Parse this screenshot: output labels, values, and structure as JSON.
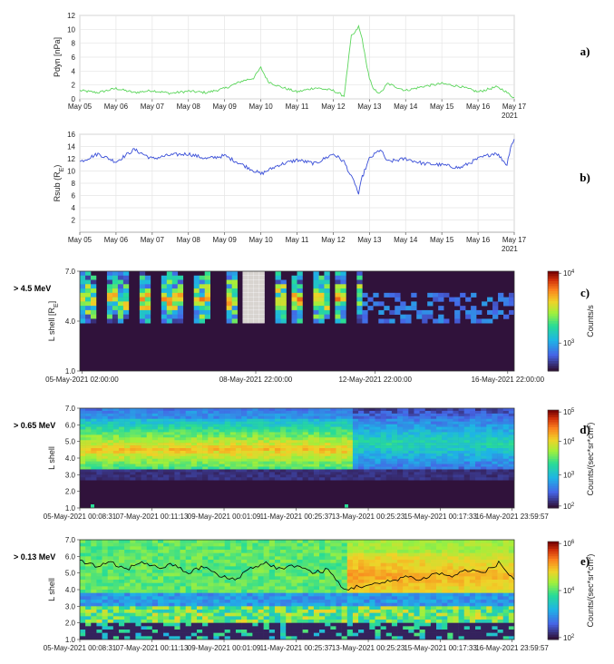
{
  "chart_data": [
    {
      "panel": "a)",
      "type": "line",
      "ylabel": "Pdyn [nPa]",
      "ylim": [
        0,
        12
      ],
      "yticks": [
        "0",
        "2",
        "4",
        "6",
        "8",
        "10",
        "12"
      ],
      "xticks": [
        "May 05",
        "May 06",
        "May 07",
        "May 08",
        "May 09",
        "May 10",
        "May 11",
        "May 12",
        "May 13",
        "May 14",
        "May 15",
        "May 16",
        "May 17"
      ],
      "year_label": "2021",
      "line_color": "#5cd65c",
      "x": [
        0,
        0.5,
        1,
        1.5,
        2,
        2.5,
        3,
        3.5,
        4,
        4.5,
        4.8,
        5,
        5.2,
        5.5,
        6,
        6.5,
        7,
        7.3,
        7.5,
        7.6,
        7.7,
        7.8,
        7.9,
        8,
        8.1,
        8.3,
        8.5,
        9,
        9.5,
        10,
        10.5,
        11,
        11.5,
        11.7,
        11.9,
        12
      ],
      "y": [
        1.2,
        0.9,
        1.5,
        0.9,
        1.2,
        0.8,
        1.1,
        0.9,
        1.5,
        2.6,
        3.0,
        4.5,
        2.5,
        1.8,
        1.0,
        1.6,
        1.2,
        0.4,
        9.0,
        9.5,
        10.4,
        8.6,
        5.5,
        3.0,
        1.4,
        0.8,
        2.2,
        1.2,
        1.8,
        2.2,
        1.8,
        1.0,
        1.7,
        1.3,
        0.5,
        0.2
      ]
    },
    {
      "panel": "b)",
      "type": "line",
      "ylabel": "Rsub (R",
      "ylabel_sub": "E",
      "ylabel_end": ")",
      "ylim": [
        0,
        16
      ],
      "yticks": [
        "2",
        "4",
        "6",
        "8",
        "10",
        "12",
        "14",
        "16"
      ],
      "xticks": [
        "May 05",
        "May 06",
        "May 07",
        "May 08",
        "May 09",
        "May 10",
        "May 11",
        "May 12",
        "May 13",
        "May 14",
        "May 15",
        "May 16",
        "May 17"
      ],
      "year_label": "2021",
      "line_color": "#3a4fd8",
      "x": [
        0,
        0.5,
        1,
        1.5,
        2,
        2.5,
        3,
        3.5,
        4,
        4.5,
        5,
        5.5,
        6,
        6.5,
        7,
        7.3,
        7.5,
        7.6,
        7.7,
        7.8,
        8,
        8.3,
        8.5,
        9,
        9.5,
        10,
        10.5,
        11,
        11.5,
        11.8,
        11.9,
        12
      ],
      "y": [
        11.5,
        12.8,
        11.5,
        13.5,
        12.0,
        12.6,
        12.8,
        12.0,
        12.5,
        11.0,
        9.5,
        11.0,
        11.8,
        11.2,
        12.8,
        11.5,
        9.0,
        8.0,
        6.2,
        9.0,
        12.0,
        13.5,
        11.5,
        12.0,
        11.2,
        11.0,
        10.5,
        12.0,
        13.0,
        11.0,
        14.0,
        15.2
      ]
    },
    {
      "panel": "c)",
      "type": "heatmap",
      "energy_label": "> 4.5 MeV",
      "ylabel": "L shell [R",
      "ylabel_sub": "E",
      "ylabel_end": "]",
      "yticks": [
        "1.0",
        "4.0",
        "7.0"
      ],
      "xticks": [
        "05-May-2021 02:00:00",
        "08-May-2021 22:00:00",
        "12-May-2021 22:00:00",
        "16-May-2021 22:00:00"
      ],
      "colorbar_label": "Counts/s",
      "colorbar_ticks": [
        "10",
        "10"
      ],
      "colorbar_exponents": [
        "4",
        "3"
      ]
    },
    {
      "panel": "d)",
      "type": "heatmap",
      "energy_label": "> 0.65 MeV",
      "ylabel": "L shell",
      "yticks": [
        "1.0",
        "2.0",
        "3.0",
        "4.0",
        "5.0",
        "6.0",
        "7.0"
      ],
      "xticks": [
        "05-May-2021 00:08:31",
        "07-May-2021 00:11:13",
        "09-May-2021 00:01:09",
        "11-May-2021 00:25:37",
        "13-May-2021 00:25:23",
        "15-May-2021 00:17:33",
        "16-May-2021 23:59:57"
      ],
      "colorbar_label": "Counts/(sec*sr*cm",
      "colorbar_label_sup": "2",
      "colorbar_label_end": ")",
      "colorbar_ticks": [
        "10",
        "10",
        "10",
        "10"
      ],
      "colorbar_exponents": [
        "5",
        "4",
        "3",
        "2"
      ]
    },
    {
      "panel": "e)",
      "type": "heatmap",
      "energy_label": "> 0.13 MeV",
      "ylabel": "L shell",
      "yticks": [
        "1.0",
        "2.0",
        "3.0",
        "4.0",
        "5.0",
        "6.0",
        "7.0"
      ],
      "xticks": [
        "05-May-2021 00:08:31",
        "07-May-2021 00:11:13",
        "09-May-2021 00:01:09",
        "11-May-2021 00:25:37",
        "13-May-2021 00:25:23",
        "15-May-2021 00:17:33",
        "16-May-2021 23:59:57"
      ],
      "colorbar_label": "Counts/(sec*sr*cm",
      "colorbar_label_sup": "2",
      "colorbar_label_end": ")",
      "colorbar_ticks": [
        "10",
        "10",
        "10"
      ],
      "colorbar_exponents": [
        "6",
        "4",
        "2"
      ],
      "overlay_line_L": [
        5.8,
        5.4,
        5.6,
        5.2,
        5.7,
        5.3,
        5.5,
        5.0,
        5.4,
        4.8,
        4.6,
        5.3,
        5.6,
        5.2,
        5.5,
        5.0,
        5.2,
        4.0,
        4.2,
        4.3,
        4.5,
        4.8,
        4.6,
        5.0,
        4.8,
        5.2,
        5.0,
        5.6,
        4.6
      ]
    }
  ]
}
